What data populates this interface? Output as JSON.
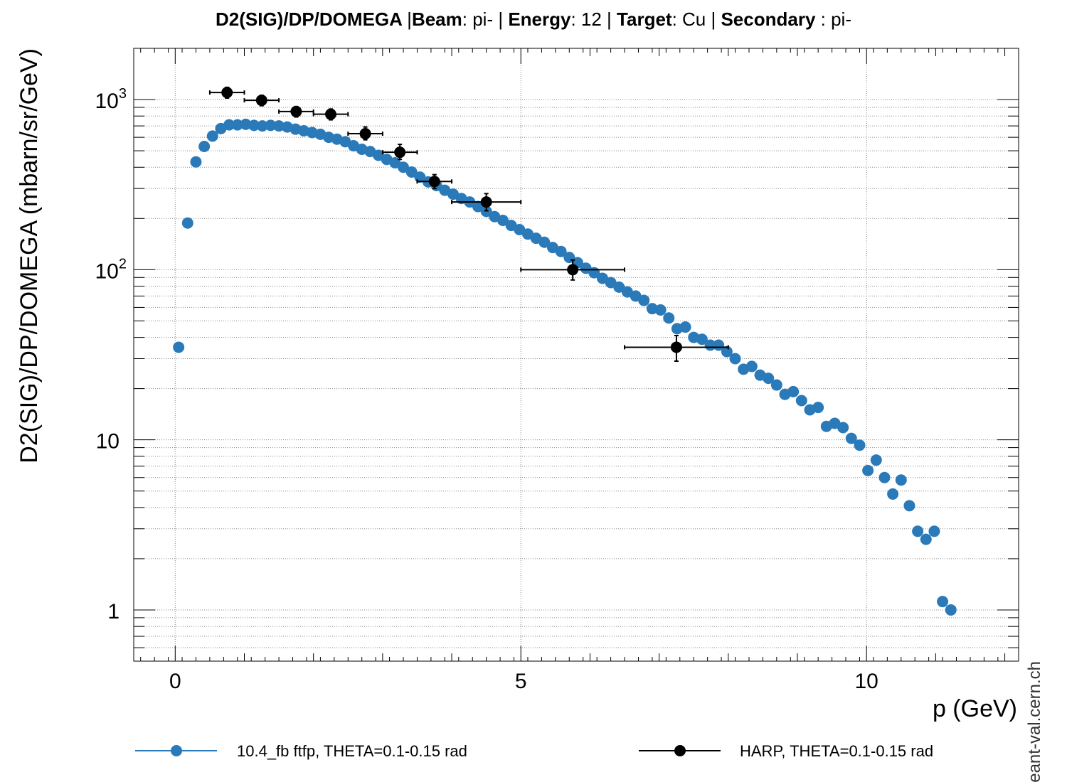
{
  "title_parts": [
    {
      "text": "D2(SIG)/DP/DOMEGA ",
      "bold": true
    },
    {
      "text": "|",
      "bold": false
    },
    {
      "text": "Beam",
      "bold": true
    },
    {
      "text": ": pi- | ",
      "bold": false
    },
    {
      "text": "Energy",
      "bold": true
    },
    {
      "text": ": 12 | ",
      "bold": false
    },
    {
      "text": "Target",
      "bold": true
    },
    {
      "text": ": Cu | ",
      "bold": false
    },
    {
      "text": "Secondary",
      "bold": true
    },
    {
      "text": " : pi-",
      "bold": false
    }
  ],
  "watermark": "geant-val.cern.ch",
  "colors": {
    "sim": "#2a7ab9",
    "data": "#000000",
    "grid": "#8a8a8a"
  },
  "chart_data": {
    "type": "scatter",
    "xlabel": "p (GeV)",
    "ylabel": "D2(SIG)/DP/DOMEGA (mbarn/sr/GeV)",
    "xlim": [
      -0.6,
      12.2
    ],
    "ylim": [
      0.5,
      2000
    ],
    "y_scale": "log",
    "grid": true,
    "legend_position": "bottom",
    "x_ticks": [
      {
        "value": 0,
        "label": "0"
      },
      {
        "value": 5,
        "label": "5"
      },
      {
        "value": 10,
        "label": "10"
      }
    ],
    "y_ticks": [
      {
        "value": 1,
        "label": "1",
        "sup": ""
      },
      {
        "value": 10,
        "label": "10",
        "sup": ""
      },
      {
        "value": 100,
        "label": "10",
        "sup": "2"
      },
      {
        "value": 1000,
        "label": "10",
        "sup": "3"
      }
    ],
    "series": [
      {
        "name": "10.4_fb ftfp, THETA=0.1-0.15 rad",
        "marker": "circle",
        "points": [
          [
            0.05,
            35
          ],
          [
            0.18,
            188
          ],
          [
            0.3,
            430
          ],
          [
            0.42,
            530
          ],
          [
            0.54,
            610
          ],
          [
            0.66,
            675
          ],
          [
            0.78,
            710
          ],
          [
            0.9,
            710
          ],
          [
            1.02,
            715
          ],
          [
            1.14,
            705
          ],
          [
            1.26,
            700
          ],
          [
            1.38,
            705
          ],
          [
            1.5,
            700
          ],
          [
            1.62,
            690
          ],
          [
            1.74,
            670
          ],
          [
            1.86,
            655
          ],
          [
            1.98,
            640
          ],
          [
            2.1,
            625
          ],
          [
            2.22,
            600
          ],
          [
            2.34,
            585
          ],
          [
            2.46,
            565
          ],
          [
            2.58,
            535
          ],
          [
            2.7,
            510
          ],
          [
            2.82,
            495
          ],
          [
            2.94,
            470
          ],
          [
            3.06,
            445
          ],
          [
            3.18,
            425
          ],
          [
            3.3,
            400
          ],
          [
            3.42,
            375
          ],
          [
            3.54,
            350
          ],
          [
            3.66,
            328
          ],
          [
            3.78,
            312
          ],
          [
            3.9,
            293
          ],
          [
            4.02,
            278
          ],
          [
            4.14,
            262
          ],
          [
            4.26,
            250
          ],
          [
            4.38,
            235
          ],
          [
            4.5,
            220
          ],
          [
            4.62,
            205
          ],
          [
            4.74,
            195
          ],
          [
            4.86,
            182
          ],
          [
            4.98,
            172
          ],
          [
            5.1,
            162
          ],
          [
            5.22,
            153
          ],
          [
            5.34,
            145
          ],
          [
            5.46,
            135
          ],
          [
            5.58,
            128
          ],
          [
            5.7,
            118
          ],
          [
            5.82,
            110
          ],
          [
            5.94,
            102
          ],
          [
            6.06,
            96
          ],
          [
            6.18,
            89
          ],
          [
            6.3,
            84
          ],
          [
            6.42,
            79
          ],
          [
            6.54,
            74
          ],
          [
            6.66,
            70
          ],
          [
            6.78,
            66
          ],
          [
            6.9,
            59
          ],
          [
            7.02,
            58
          ],
          [
            7.14,
            52
          ],
          [
            7.26,
            45
          ],
          [
            7.38,
            46
          ],
          [
            7.5,
            40
          ],
          [
            7.62,
            39
          ],
          [
            7.74,
            36
          ],
          [
            7.86,
            36
          ],
          [
            7.98,
            33
          ],
          [
            8.1,
            30
          ],
          [
            8.22,
            26
          ],
          [
            8.34,
            27
          ],
          [
            8.46,
            24
          ],
          [
            8.58,
            23
          ],
          [
            8.7,
            21
          ],
          [
            8.82,
            18.5
          ],
          [
            8.94,
            19.2
          ],
          [
            9.06,
            17
          ],
          [
            9.18,
            15
          ],
          [
            9.3,
            15.5
          ],
          [
            9.42,
            12
          ],
          [
            9.54,
            12.5
          ],
          [
            9.66,
            11.8
          ],
          [
            9.78,
            10.2
          ],
          [
            9.9,
            9.3
          ],
          [
            10.02,
            6.6
          ],
          [
            10.14,
            7.6
          ],
          [
            10.26,
            6
          ],
          [
            10.38,
            4.8
          ],
          [
            10.5,
            5.8
          ],
          [
            10.62,
            4.1
          ],
          [
            10.74,
            2.9
          ],
          [
            10.86,
            2.6
          ],
          [
            10.98,
            2.9
          ],
          [
            11.1,
            1.12
          ],
          [
            11.22,
            1.0
          ]
        ]
      },
      {
        "name": "HARP, THETA=0.1-0.15 rad",
        "marker": "circle",
        "points": [
          {
            "x": 0.75,
            "y": 1100,
            "xlo": 0.5,
            "xhi": 1.0,
            "ylo": 1020,
            "yhi": 1180
          },
          {
            "x": 1.25,
            "y": 990,
            "xlo": 1.0,
            "xhi": 1.5,
            "ylo": 920,
            "yhi": 1060
          },
          {
            "x": 1.75,
            "y": 850,
            "xlo": 1.5,
            "xhi": 2.0,
            "ylo": 790,
            "yhi": 910
          },
          {
            "x": 2.25,
            "y": 820,
            "xlo": 2.0,
            "xhi": 2.5,
            "ylo": 760,
            "yhi": 880
          },
          {
            "x": 2.75,
            "y": 630,
            "xlo": 2.5,
            "xhi": 3.0,
            "ylo": 580,
            "yhi": 690
          },
          {
            "x": 3.25,
            "y": 490,
            "xlo": 3.0,
            "xhi": 3.5,
            "ylo": 445,
            "yhi": 545
          },
          {
            "x": 3.75,
            "y": 330,
            "xlo": 3.5,
            "xhi": 4.0,
            "ylo": 300,
            "yhi": 362
          },
          {
            "x": 4.5,
            "y": 250,
            "xlo": 4.0,
            "xhi": 5.0,
            "ylo": 222,
            "yhi": 280
          },
          {
            "x": 5.75,
            "y": 100,
            "xlo": 5.0,
            "xhi": 6.5,
            "ylo": 87,
            "yhi": 114
          },
          {
            "x": 7.25,
            "y": 35,
            "xlo": 6.5,
            "xhi": 8.0,
            "ylo": 29,
            "yhi": 41
          }
        ]
      }
    ]
  }
}
